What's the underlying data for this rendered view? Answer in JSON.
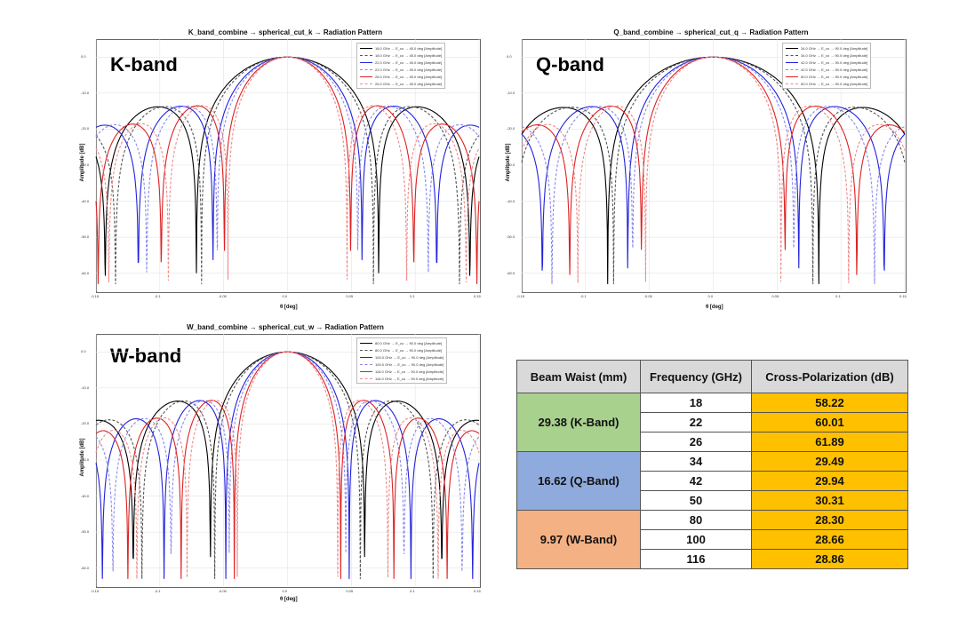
{
  "chart_data": [
    {
      "type": "line",
      "title": "K_band_combine → spherical_cut_k → Radiation Pattern",
      "band_label": "K-band",
      "xlabel": "θ [deg]",
      "ylabel": "Amplitude [dB]",
      "xlim": [
        -0.15,
        0.15
      ],
      "ylim": [
        -65,
        5
      ],
      "xticks": [
        "-0.15",
        "-0.1",
        "-0.05",
        "0.0",
        "0.05",
        "0.1",
        "0.15"
      ],
      "yticks": [
        "0.0",
        "-10.0",
        "-20.0",
        "-30.0",
        "-40.0",
        "-50.0",
        "-60.0"
      ],
      "grid": true,
      "legend_position": "top-right",
      "series": [
        {
          "name": "18.0 GHz → E_co → 45.0 deg [Amplitude]",
          "color": "#000000",
          "style": "solid",
          "freq": 18
        },
        {
          "name": "18.0 GHz → E_co → 45.0 deg [Amplitude]",
          "color": "#555555",
          "style": "dash",
          "freq": 18
        },
        {
          "name": "22.0 GHz → E_co → 45.0 deg [Amplitude]",
          "color": "#2222dd",
          "style": "solid",
          "freq": 22
        },
        {
          "name": "22.0 GHz → E_co → 45.0 deg [Amplitude]",
          "color": "#8a8aee",
          "style": "dash",
          "freq": 22
        },
        {
          "name": "26.0 GHz → E_co → 45.0 deg [Amplitude]",
          "color": "#dd2222",
          "style": "solid",
          "freq": 26
        },
        {
          "name": "26.0 GHz → E_co → 45.0 deg [Amplitude]",
          "color": "#ee8a8a",
          "style": "dash",
          "freq": 26
        }
      ]
    },
    {
      "type": "line",
      "title": "Q_band_combine → spherical_cut_q → Radiation Pattern",
      "band_label": "Q-band",
      "xlabel": "θ [deg]",
      "ylabel": "Amplitude [dB]",
      "xlim": [
        -0.15,
        0.15
      ],
      "ylim": [
        -65,
        5
      ],
      "xticks": [
        "-0.15",
        "-0.1",
        "-0.05",
        "0.0",
        "0.05",
        "0.1",
        "0.15"
      ],
      "yticks": [
        "0.0",
        "-10.0",
        "-20.0",
        "-30.0",
        "-40.0",
        "-50.0",
        "-60.0"
      ],
      "grid": true,
      "legend_position": "top-right",
      "series": [
        {
          "name": "34.0 GHz → E_co → 90.0 deg [Amplitude]",
          "color": "#000000",
          "style": "solid",
          "freq": 34
        },
        {
          "name": "34.0 GHz → E_co → 90.0 deg [Amplitude]",
          "color": "#555555",
          "style": "dash",
          "freq": 34
        },
        {
          "name": "42.0 GHz → E_co → 90.0 deg [Amplitude]",
          "color": "#2222dd",
          "style": "solid",
          "freq": 42
        },
        {
          "name": "42.0 GHz → E_co → 90.0 deg [Amplitude]",
          "color": "#8a8aee",
          "style": "dash",
          "freq": 42
        },
        {
          "name": "50.0 GHz → E_co → 90.0 deg [Amplitude]",
          "color": "#dd2222",
          "style": "solid",
          "freq": 50
        },
        {
          "name": "50.0 GHz → E_co → 90.0 deg [Amplitude]",
          "color": "#ee8a8a",
          "style": "dash",
          "freq": 50
        }
      ]
    },
    {
      "type": "line",
      "title": "W_band_combine → spherical_cut_w → Radiation Pattern",
      "band_label": "W-band",
      "xlabel": "θ [deg]",
      "ylabel": "Amplitude [dB]",
      "xlim": [
        -0.15,
        0.15
      ],
      "ylim": [
        -65,
        5
      ],
      "xticks": [
        "-0.15",
        "-0.1",
        "-0.05",
        "0.0",
        "0.05",
        "0.1",
        "0.15"
      ],
      "yticks": [
        "0.0",
        "-10.0",
        "-20.0",
        "-30.0",
        "-40.0",
        "-50.0",
        "-60.0"
      ],
      "grid": true,
      "legend_position": "top-right",
      "series": [
        {
          "name": "80.0 GHz → E_co → 90.0 deg [Amplitude]",
          "color": "#000000",
          "style": "solid",
          "freq": 80
        },
        {
          "name": "80.0 GHz → E_co → 90.0 deg [Amplitude]",
          "color": "#555555",
          "style": "dash",
          "freq": 80
        },
        {
          "name": "100.0 GHz → E_co → 90.0 deg [Amplitude]",
          "color": "#2222dd",
          "style": "solid",
          "freq": 100
        },
        {
          "name": "100.0 GHz → E_co → 90.0 deg [Amplitude]",
          "color": "#8a8aee",
          "style": "dash",
          "freq": 100
        },
        {
          "name": "116.0 GHz → E_co → 90.0 deg [Amplitude]",
          "color": "#dd2222",
          "style": "solid",
          "freq": 116
        },
        {
          "name": "116.0 GHz → E_co → 90.0 deg [Amplitude]",
          "color": "#ee8a8a",
          "style": "dash",
          "freq": 116
        }
      ]
    },
    {
      "type": "table",
      "columns": [
        "Beam Waist (mm)",
        "Frequency (GHz)",
        "Cross-Polarization (dB)"
      ],
      "groups": [
        {
          "beam_waist": "29.38 (K-Band)",
          "color": "#a9d18e",
          "rows": [
            {
              "freq": "18",
              "xpol": "58.22"
            },
            {
              "freq": "22",
              "xpol": "60.01"
            },
            {
              "freq": "26",
              "xpol": "61.89"
            }
          ]
        },
        {
          "beam_waist": "16.62 (Q-Band)",
          "color": "#8faadc",
          "rows": [
            {
              "freq": "34",
              "xpol": "29.49"
            },
            {
              "freq": "42",
              "xpol": "29.94"
            },
            {
              "freq": "50",
              "xpol": "30.31"
            }
          ]
        },
        {
          "beam_waist": "9.97 (W-Band)",
          "color": "#f4b183",
          "rows": [
            {
              "freq": "80",
              "xpol": "28.30"
            },
            {
              "freq": "100",
              "xpol": "28.66"
            },
            {
              "freq": "116",
              "xpol": "28.86"
            }
          ]
        }
      ]
    }
  ]
}
